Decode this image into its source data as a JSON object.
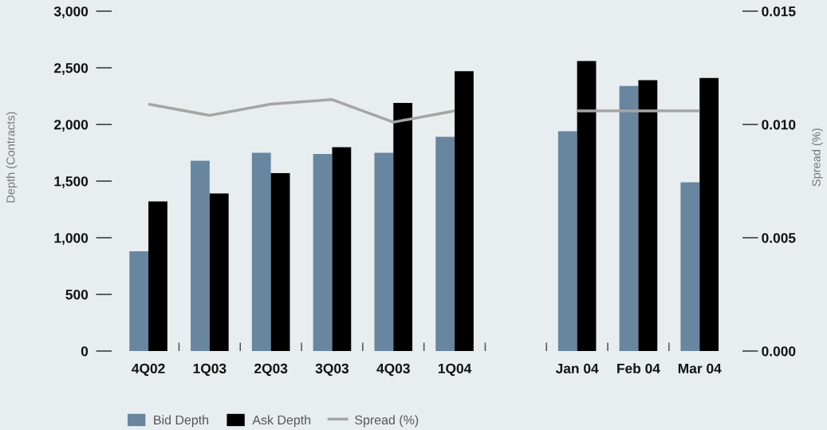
{
  "chart_data": {
    "type": "bar",
    "ylabel": "Depth (Contracts)",
    "y2label": "Spread (%)",
    "categories": [
      "4Q02",
      "1Q03",
      "2Q03",
      "3Q03",
      "4Q03",
      "1Q04",
      null,
      "Jan 04",
      "Feb 04",
      "Mar 04"
    ],
    "series": [
      {
        "name": "Bid Depth",
        "color": "#6886a0",
        "values": [
          880,
          1680,
          1750,
          1740,
          1750,
          1890,
          null,
          1940,
          2340,
          1490
        ]
      },
      {
        "name": "Ask Depth",
        "color": "#000000",
        "values": [
          1320,
          1390,
          1570,
          1800,
          2190,
          2470,
          null,
          2560,
          2390,
          2410
        ]
      },
      {
        "name": "Spread (%)",
        "type": "line",
        "axis": "y2",
        "color": "#a5a5a5",
        "values": [
          0.0109,
          0.0104,
          0.0109,
          0.0111,
          0.0101,
          0.0106,
          null,
          0.0106,
          0.0106,
          0.0106
        ]
      }
    ],
    "ylim": [
      0,
      3000
    ],
    "yticks": [
      0,
      500,
      {
        "value": 1000,
        "label": "1,000"
      },
      {
        "value": 1500,
        "label": "1,500"
      },
      {
        "value": 2000,
        "label": "2,000"
      },
      {
        "value": 2500,
        "label": "2,500"
      },
      {
        "value": 3000,
        "label": "3,000"
      }
    ],
    "y2lim": [
      0,
      0.015
    ],
    "y2ticks": [
      {
        "value": 0,
        "label": "0.000"
      },
      {
        "value": 0.005,
        "label": "0.005"
      },
      {
        "value": 0.01,
        "label": "0.010"
      },
      {
        "value": 0.015,
        "label": "0.015"
      }
    ],
    "legend": "bottom",
    "line_style": "solid"
  }
}
